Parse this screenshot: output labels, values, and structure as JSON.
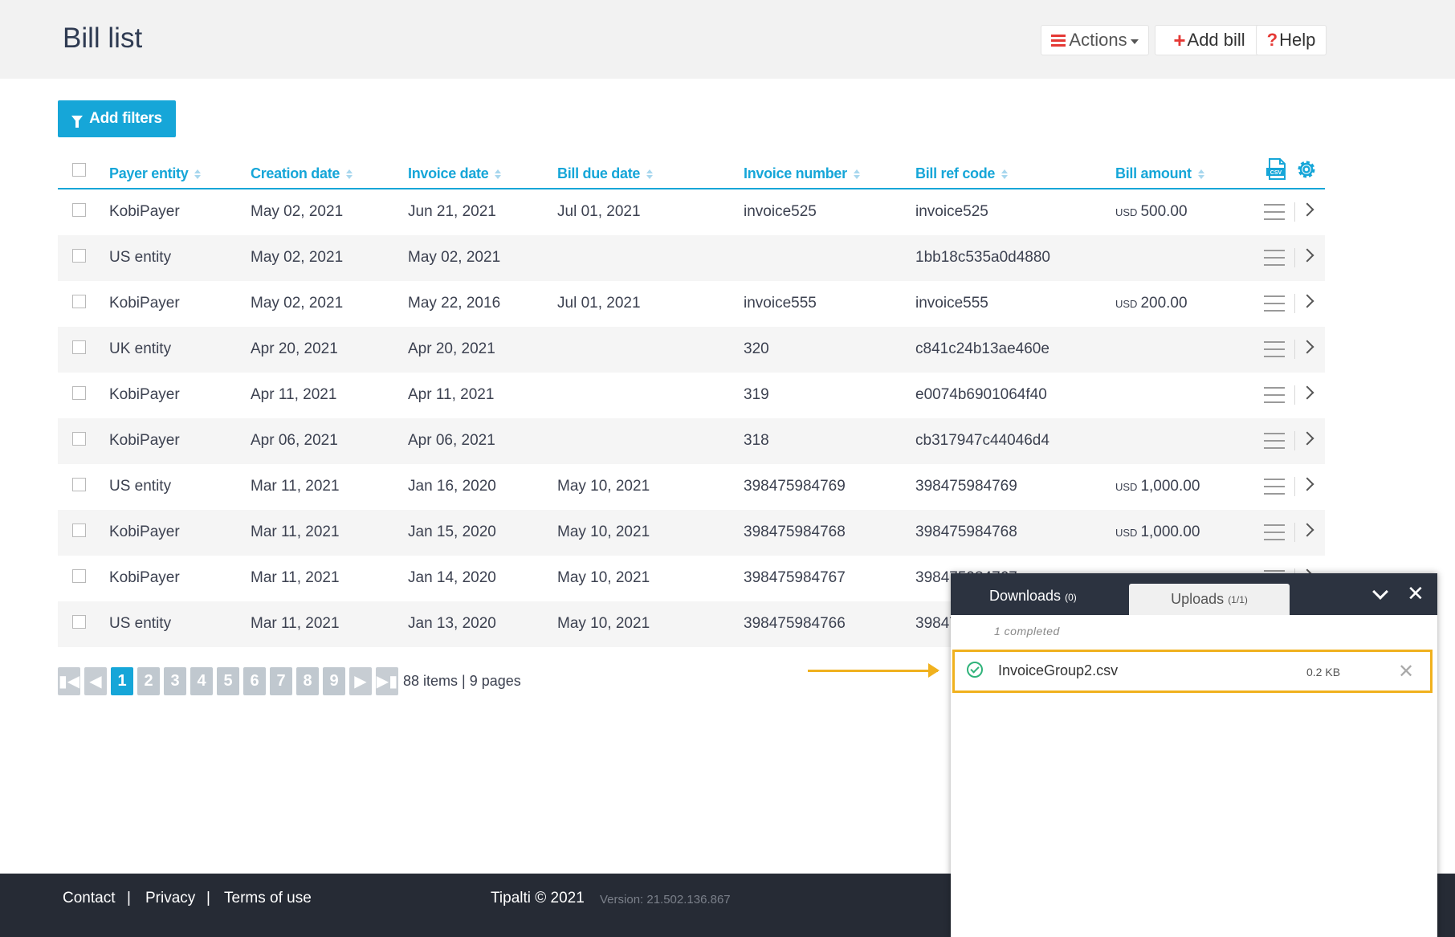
{
  "header": {
    "title": "Bill list",
    "actions_label": "Actions",
    "add_bill_label": "Add bill",
    "help_label": "Help"
  },
  "filters": {
    "add_label": "Add filters"
  },
  "table": {
    "columns": [
      "Payer entity",
      "Creation date",
      "Invoice date",
      "Bill due date",
      "Invoice number",
      "Bill ref code",
      "Bill amount"
    ],
    "rows": [
      {
        "payer": "KobiPayer",
        "created": "May 02, 2021",
        "invoice_date": "Jun 21, 2021",
        "due": "Jul 01, 2021",
        "number": "invoice525",
        "ref": "invoice525",
        "currency": "USD",
        "amount": "500.00"
      },
      {
        "payer": "US entity",
        "created": "May 02, 2021",
        "invoice_date": "May 02, 2021",
        "due": "",
        "number": "",
        "ref": "1bb18c535a0d4880",
        "currency": "",
        "amount": ""
      },
      {
        "payer": "KobiPayer",
        "created": "May 02, 2021",
        "invoice_date": "May 22, 2016",
        "due": "Jul 01, 2021",
        "number": "invoice555",
        "ref": "invoice555",
        "currency": "USD",
        "amount": "200.00"
      },
      {
        "payer": "UK entity",
        "created": "Apr 20, 2021",
        "invoice_date": "Apr 20, 2021",
        "due": "",
        "number": "320",
        "ref": "c841c24b13ae460e",
        "currency": "",
        "amount": ""
      },
      {
        "payer": "KobiPayer",
        "created": "Apr 11, 2021",
        "invoice_date": "Apr 11, 2021",
        "due": "",
        "number": "319",
        "ref": "e0074b6901064f40",
        "currency": "",
        "amount": ""
      },
      {
        "payer": "KobiPayer",
        "created": "Apr 06, 2021",
        "invoice_date": "Apr 06, 2021",
        "due": "",
        "number": "318",
        "ref": "cb317947c44046d4",
        "currency": "",
        "amount": ""
      },
      {
        "payer": "US entity",
        "created": "Mar 11, 2021",
        "invoice_date": "Jan 16, 2020",
        "due": "May 10, 2021",
        "number": "398475984769",
        "ref": "398475984769",
        "currency": "USD",
        "amount": "1,000.00"
      },
      {
        "payer": "KobiPayer",
        "created": "Mar 11, 2021",
        "invoice_date": "Jan 15, 2020",
        "due": "May 10, 2021",
        "number": "398475984768",
        "ref": "398475984768",
        "currency": "USD",
        "amount": "1,000.00"
      },
      {
        "payer": "KobiPayer",
        "created": "Mar 11, 2021",
        "invoice_date": "Jan 14, 2020",
        "due": "May 10, 2021",
        "number": "398475984767",
        "ref": "398475984767",
        "currency": "",
        "amount": ""
      },
      {
        "payer": "US entity",
        "created": "Mar 11, 2021",
        "invoice_date": "Jan 13, 2020",
        "due": "May 10, 2021",
        "number": "398475984766",
        "ref": "398475984766",
        "currency": "",
        "amount": ""
      }
    ]
  },
  "pagination": {
    "pages": [
      "1",
      "2",
      "3",
      "4",
      "5",
      "6",
      "7",
      "8",
      "9"
    ],
    "current": "1",
    "info": "88 items | 9 pages"
  },
  "footer": {
    "contact": "Contact",
    "privacy": "Privacy",
    "terms": "Terms of use",
    "separator": "|",
    "copyright": "Tipalti © 2021",
    "version": "Version: 21.502.136.867"
  },
  "uploads_panel": {
    "downloads_tab": "Downloads",
    "downloads_count": "(0)",
    "uploads_tab": "Uploads",
    "uploads_count": "(1/1)",
    "status": "1 completed",
    "file_name": "InvoiceGroup2.csv",
    "file_size": "0.2 KB"
  },
  "colors": {
    "accent": "#16a6d8",
    "danger": "#e53935",
    "highlight": "#f0b11e",
    "success": "#2fb37a",
    "footer_bg": "#262b35"
  },
  "icons": [
    "hamburger-icon",
    "caret-down-icon",
    "plus-icon",
    "question-icon",
    "funnel-icon",
    "sort-icon",
    "csv-export-icon",
    "gear-icon",
    "row-menu-icon",
    "chevron-right-icon",
    "first-page-icon",
    "prev-page-icon",
    "next-page-icon",
    "last-page-icon",
    "collapse-icon",
    "close-icon",
    "check-circle-icon",
    "remove-icon"
  ]
}
